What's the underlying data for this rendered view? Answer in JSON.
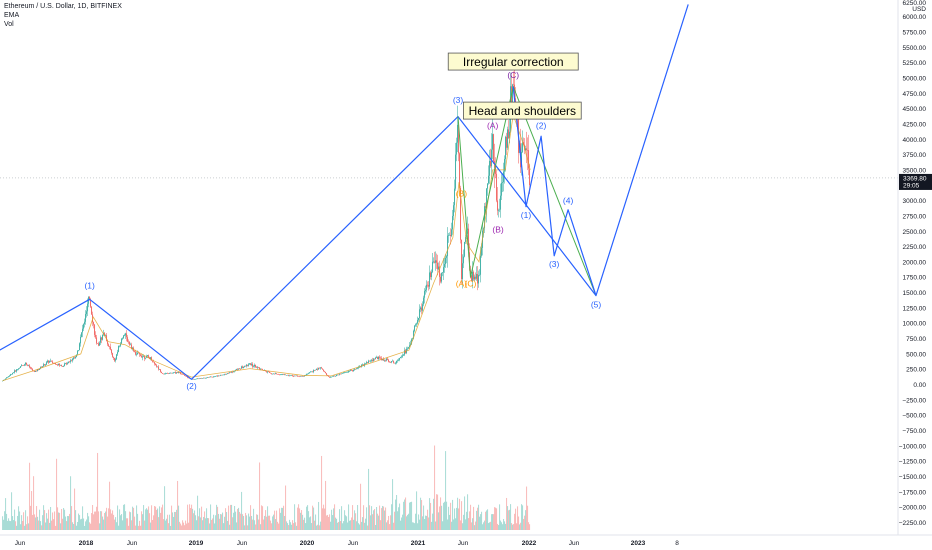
{
  "header": {
    "symbol_line": "Ethereum / U.S. Dollar, 1D, BITFINEX",
    "indicator_1": "EMA",
    "indicator_2": "Vol"
  },
  "chart_data": {
    "type": "candlestick",
    "symbol": "Ethereum / U.S. Dollar",
    "interval": "1D",
    "exchange": "BITFINEX",
    "currency": "USD",
    "last_price": "3369.80",
    "countdown": "29:05",
    "price_axis_max_label": "6250.00",
    "price_ticks": [
      "6000.00",
      "5750.00",
      "5500.00",
      "5250.00",
      "5000.00",
      "4750.00",
      "4500.00",
      "4250.00",
      "4000.00",
      "3750.00",
      "3500.00",
      "3250.00",
      "3000.00",
      "2750.00",
      "2500.00",
      "2250.00",
      "2000.00",
      "1750.00",
      "1500.00",
      "1250.00",
      "1000.00",
      "750.00",
      "500.00",
      "250.00",
      "0.00",
      "−250.00",
      "−500.00",
      "−750.00",
      "−1000.00",
      "−1250.00",
      "−1500.00",
      "−1750.00",
      "−2000.00",
      "−2250.00"
    ],
    "x_labels": [
      "Jun",
      "2018",
      "Jun",
      "2019",
      "Jun",
      "2020",
      "Jun",
      "2021",
      "Jun",
      "2022",
      "Jun",
      "2023",
      "8"
    ],
    "price_path": [
      [
        "2017-04-01",
        60
      ],
      [
        "2017-06-15",
        350
      ],
      [
        "2017-07-15",
        200
      ],
      [
        "2017-09-01",
        380
      ],
      [
        "2017-10-15",
        300
      ],
      [
        "2017-12-01",
        470
      ],
      [
        "2018-01-13",
        1400
      ],
      [
        "2018-02-06",
        600
      ],
      [
        "2018-03-01",
        850
      ],
      [
        "2018-04-05",
        380
      ],
      [
        "2018-05-05",
        830
      ],
      [
        "2018-06-15",
        500
      ],
      [
        "2018-08-01",
        430
      ],
      [
        "2018-09-12",
        170
      ],
      [
        "2018-11-01",
        200
      ],
      [
        "2018-12-15",
        85
      ],
      [
        "2019-02-01",
        110
      ],
      [
        "2019-04-01",
        160
      ],
      [
        "2019-06-26",
        330
      ],
      [
        "2019-09-01",
        180
      ],
      [
        "2019-12-15",
        130
      ],
      [
        "2020-02-14",
        280
      ],
      [
        "2020-03-13",
        110
      ],
      [
        "2020-06-01",
        240
      ],
      [
        "2020-08-15",
        440
      ],
      [
        "2020-10-15",
        360
      ],
      [
        "2020-12-01",
        600
      ],
      [
        "2021-01-20",
        1400
      ],
      [
        "2021-02-20",
        1950
      ],
      [
        "2021-03-20",
        1800
      ],
      [
        "2021-04-25",
        2700
      ],
      [
        "2021-05-12",
        4380
      ],
      [
        "2021-05-23",
        1750
      ],
      [
        "2021-06-10",
        2600
      ],
      [
        "2021-06-22",
        1760
      ],
      [
        "2021-07-20",
        1720
      ],
      [
        "2021-08-15",
        3300
      ],
      [
        "2021-09-03",
        3950
      ],
      [
        "2021-09-21",
        2700
      ],
      [
        "2021-10-15",
        3800
      ],
      [
        "2021-11-10",
        4860
      ],
      [
        "2021-12-04",
        3600
      ],
      [
        "2021-12-15",
        3900
      ],
      [
        "2022-01-05",
        3369.8
      ]
    ],
    "ema_path": [
      [
        "2017-04-01",
        60
      ],
      [
        "2017-07-15",
        230
      ],
      [
        "2017-12-15",
        500
      ],
      [
        "2018-01-25",
        1100
      ],
      [
        "2018-03-15",
        700
      ],
      [
        "2018-05-10",
        650
      ],
      [
        "2018-08-15",
        380
      ],
      [
        "2018-12-15",
        120
      ],
      [
        "2019-06-26",
        260
      ],
      [
        "2019-12-15",
        150
      ],
      [
        "2020-03-20",
        140
      ],
      [
        "2020-08-15",
        380
      ],
      [
        "2020-12-01",
        560
      ],
      [
        "2021-02-20",
        1650
      ],
      [
        "2021-04-25",
        2400
      ],
      [
        "2021-05-15",
        3300
      ],
      [
        "2021-06-10",
        2300
      ],
      [
        "2021-07-20",
        2000
      ],
      [
        "2021-09-03",
        3500
      ],
      [
        "2021-10-15",
        3500
      ],
      [
        "2021-11-10",
        4400
      ],
      [
        "2021-12-15",
        3900
      ],
      [
        "2022-01-05",
        3500
      ]
    ],
    "blue_wave_path": [
      [
        "2016-12-01",
        250
      ],
      [
        "2018-01-13",
        1390
      ],
      [
        "2018-12-15",
        85
      ],
      [
        "2021-05-12",
        4370
      ],
      [
        "2022-08-10",
        1450
      ],
      [
        "2023-06-10",
        6200
      ]
    ],
    "green_path": [
      [
        "2021-05-12",
        4370
      ],
      [
        "2021-06-22",
        1750
      ],
      [
        "2021-11-10",
        4860
      ],
      [
        "2022-08-10",
        1450
      ]
    ],
    "projection_path": [
      [
        "2021-11-10",
        4860
      ],
      [
        "2021-12-22",
        2900
      ],
      [
        "2022-02-10",
        4050
      ],
      [
        "2022-03-25",
        2100
      ],
      [
        "2022-05-10",
        2850
      ],
      [
        "2022-08-10",
        1450
      ]
    ],
    "volume_baseline_label": "0.00",
    "wave_labels": [
      {
        "text": "(1)",
        "color": "#2962ff",
        "date": "2018-01-13",
        "price": 1570
      },
      {
        "text": "(2)",
        "color": "#2962ff",
        "date": "2018-12-15",
        "price": -70
      },
      {
        "text": "(3)",
        "color": "#2962ff",
        "date": "2021-05-12",
        "price": 4590
      },
      {
        "text": "(A)",
        "color": "#9c27b0",
        "date": "2021-09-03",
        "price": 4180
      },
      {
        "text": "(B)",
        "color": "#9c27b0",
        "date": "2021-09-21",
        "price": 2480
      },
      {
        "text": "(C)",
        "color": "#7b1fa2",
        "date": "2021-11-10",
        "price": 5000
      },
      {
        "text": "(B)",
        "color": "#ff9800",
        "date": "2021-05-23",
        "price": 3070
      },
      {
        "text": "(A)",
        "color": "#ff9800",
        "date": "2021-05-23",
        "price": 1600
      },
      {
        "text": "(C)",
        "color": "#ff9800",
        "date": "2021-06-22",
        "price": 1600
      },
      {
        "text": "(1)",
        "color": "#2962ff",
        "date": "2021-12-22",
        "price": 2720
      },
      {
        "text": "(2)",
        "color": "#2962ff",
        "date": "2022-02-10",
        "price": 4180
      },
      {
        "text": "(3)",
        "color": "#2962ff",
        "date": "2022-03-25",
        "price": 1920
      },
      {
        "text": "(4)",
        "color": "#2962ff",
        "date": "2022-05-10",
        "price": 2950
      },
      {
        "text": "(5)",
        "color": "#2962ff",
        "date": "2022-08-10",
        "price": 1260
      }
    ],
    "annotations": [
      {
        "text": "Irregular correction",
        "date": "2021-11-10",
        "price": 5260
      },
      {
        "text": "Head and shoulders",
        "date": "2021-12-10",
        "price": 4460
      }
    ],
    "colors": {
      "up": "#26a69a",
      "down": "#ef5350",
      "ema": "#e0a020",
      "blue": "#2962ff",
      "green": "#4caf50",
      "last_tag": "#131722"
    }
  }
}
